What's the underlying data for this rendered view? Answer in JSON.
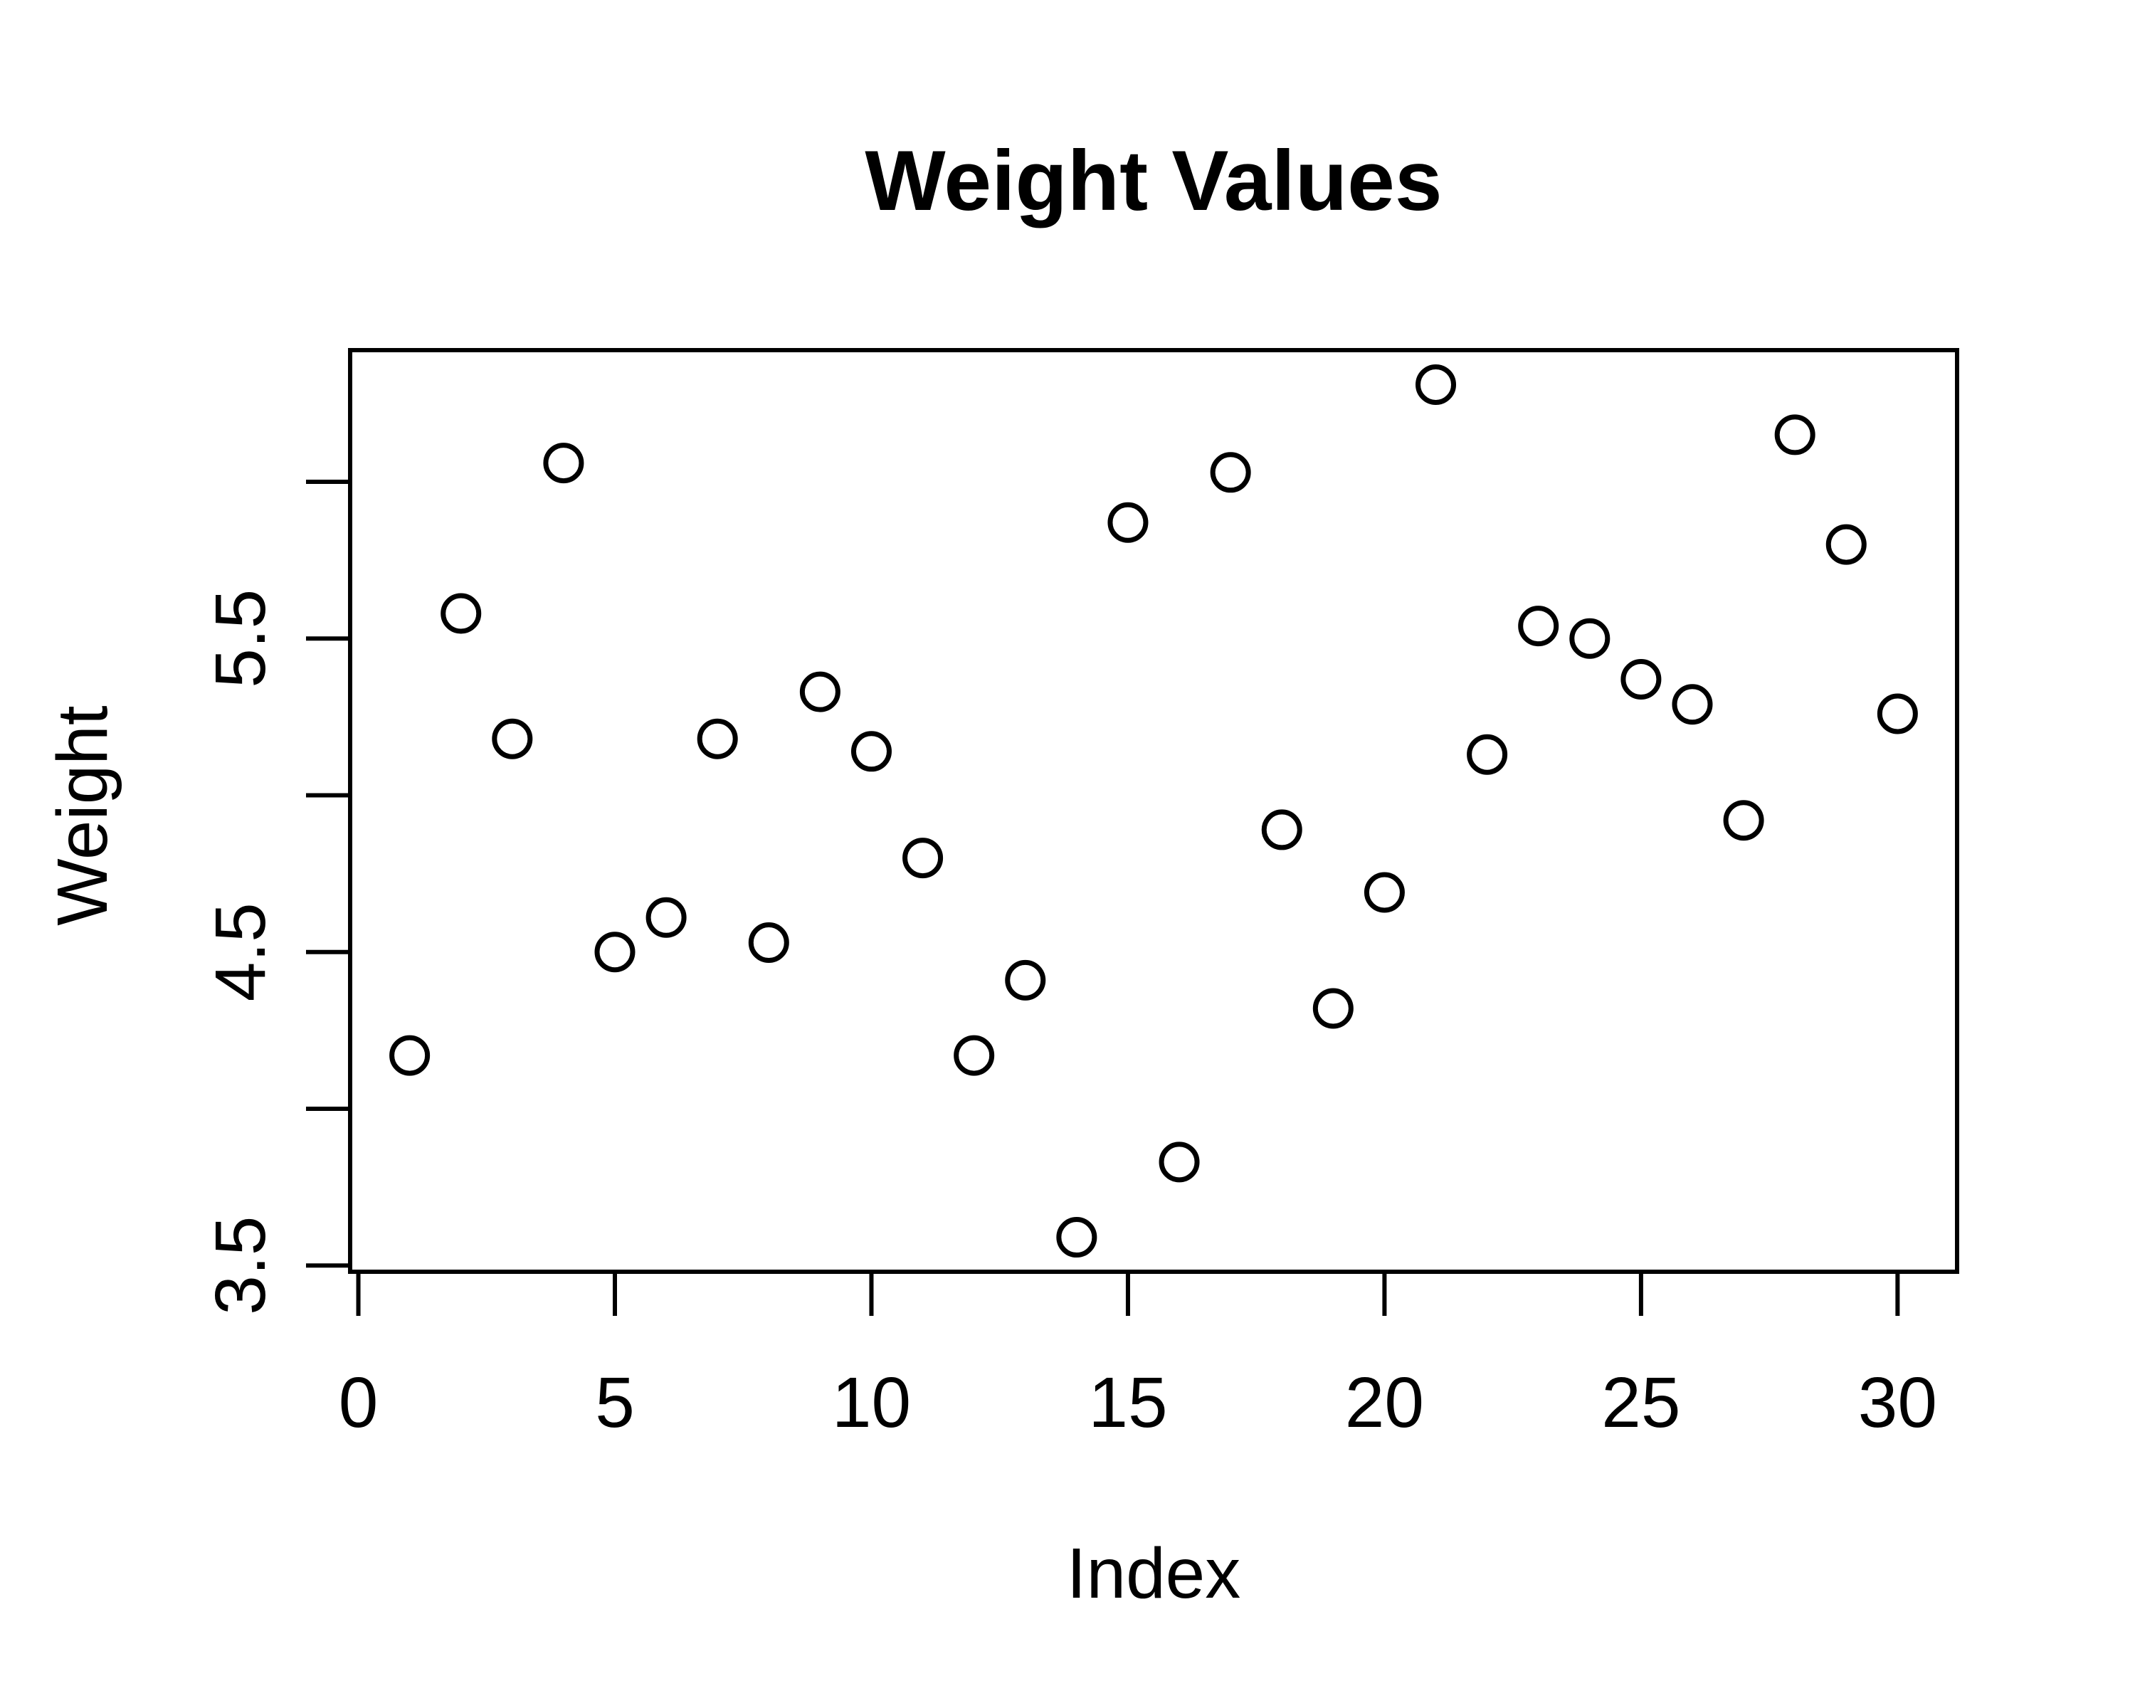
{
  "page": {
    "background": "#ffffff",
    "foreground": "#000000"
  },
  "chart_data": {
    "type": "scatter",
    "title": "Weight Values",
    "xlabel": "Index",
    "ylabel": "Weight",
    "x": [
      1,
      2,
      3,
      4,
      5,
      6,
      7,
      8,
      9,
      10,
      11,
      12,
      13,
      14,
      15,
      16,
      17,
      18,
      19,
      20,
      21,
      22,
      23,
      24,
      25,
      26,
      27,
      28,
      29,
      30
    ],
    "y": [
      4.17,
      5.58,
      5.18,
      6.06,
      4.5,
      4.61,
      5.18,
      4.53,
      5.33,
      5.14,
      4.8,
      4.17,
      4.41,
      3.59,
      5.87,
      3.83,
      6.03,
      4.89,
      4.32,
      4.69,
      6.31,
      5.13,
      5.54,
      5.5,
      5.37,
      5.29,
      4.92,
      6.15,
      5.8,
      5.26
    ],
    "xlim": [
      -0.16,
      31.16
    ],
    "ylim": [
      3.48,
      6.42
    ],
    "x_ticks": [
      0,
      5,
      10,
      15,
      20,
      25,
      30
    ],
    "x_tick_labels": [
      "0",
      "5",
      "10",
      "15",
      "20",
      "25",
      "30"
    ],
    "y_ticks": [
      3.5,
      4.0,
      4.5,
      5.0,
      5.5,
      6.0
    ],
    "y_tick_labels": [
      "3.5",
      "",
      "4.5",
      "",
      "5.5",
      ""
    ],
    "marker": "open-circle",
    "marker_color": "#000000",
    "grid": false,
    "legend_position": "none"
  }
}
